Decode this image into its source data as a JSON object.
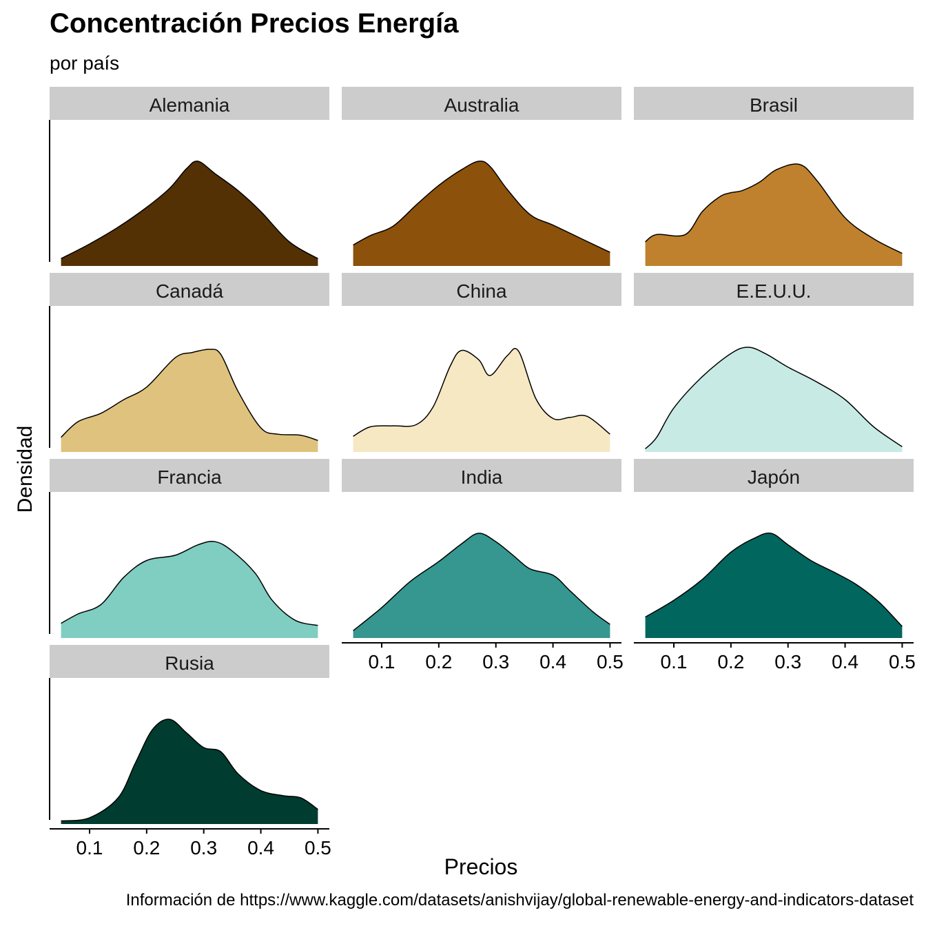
{
  "chart_data": {
    "type": "area",
    "subtype": "faceted density",
    "title": "Concentración Precios Energía",
    "subtitle": "por país",
    "xlabel": "Precios",
    "ylabel": "Densidad",
    "caption": "Información de https://www.kaggle.com/datasets/anishvijay/global-renewable-energy-and-indicators-dataset",
    "x_ticks": [
      "0.1",
      "0.2",
      "0.3",
      "0.4",
      "0.5"
    ],
    "x_tick_values": [
      0.1,
      0.2,
      0.3,
      0.4,
      0.5
    ],
    "xlim": [
      0.05,
      0.5
    ],
    "grid": false,
    "facet_columns": 3,
    "free_y_scale": true,
    "series": [
      {
        "name": "Alemania",
        "color": "#543005",
        "x": [
          0.05,
          0.1,
          0.15,
          0.2,
          0.24,
          0.27,
          0.29,
          0.32,
          0.36,
          0.4,
          0.45,
          0.5
        ],
        "density": [
          0.07,
          0.21,
          0.37,
          0.56,
          0.74,
          0.93,
          1.0,
          0.88,
          0.72,
          0.52,
          0.23,
          0.07
        ]
      },
      {
        "name": "Australia",
        "color": "#8C510A",
        "x": [
          0.05,
          0.08,
          0.12,
          0.16,
          0.2,
          0.24,
          0.27,
          0.29,
          0.32,
          0.36,
          0.4,
          0.45,
          0.5
        ],
        "density": [
          0.2,
          0.29,
          0.38,
          0.58,
          0.77,
          0.92,
          1.0,
          0.95,
          0.73,
          0.49,
          0.39,
          0.26,
          0.13
        ]
      },
      {
        "name": "Brasil",
        "color": "#BF812D",
        "x": [
          0.05,
          0.07,
          0.12,
          0.15,
          0.18,
          0.2,
          0.22,
          0.25,
          0.28,
          0.32,
          0.35,
          0.4,
          0.45,
          0.5
        ],
        "density": [
          0.23,
          0.3,
          0.3,
          0.52,
          0.66,
          0.7,
          0.72,
          0.8,
          0.92,
          0.97,
          0.82,
          0.46,
          0.26,
          0.12
        ]
      },
      {
        "name": "Canadá",
        "color": "#DFC27D",
        "x": [
          0.05,
          0.08,
          0.12,
          0.16,
          0.2,
          0.25,
          0.28,
          0.31,
          0.33,
          0.36,
          0.4,
          0.43,
          0.47,
          0.5
        ],
        "density": [
          0.14,
          0.29,
          0.37,
          0.5,
          0.62,
          0.9,
          0.95,
          0.98,
          0.93,
          0.58,
          0.23,
          0.17,
          0.16,
          0.11
        ]
      },
      {
        "name": "China",
        "color": "#F6E8C3",
        "x": [
          0.05,
          0.08,
          0.12,
          0.16,
          0.19,
          0.22,
          0.24,
          0.27,
          0.29,
          0.32,
          0.34,
          0.37,
          0.4,
          0.43,
          0.46,
          0.5
        ],
        "density": [
          0.15,
          0.24,
          0.25,
          0.26,
          0.43,
          0.82,
          0.97,
          0.88,
          0.73,
          0.92,
          0.96,
          0.51,
          0.32,
          0.33,
          0.34,
          0.17
        ]
      },
      {
        "name": "E.E.U.U.",
        "color": "#C7EAE5",
        "x": [
          0.05,
          0.07,
          0.1,
          0.15,
          0.2,
          0.23,
          0.26,
          0.3,
          0.35,
          0.4,
          0.45,
          0.5
        ],
        "density": [
          0.03,
          0.14,
          0.42,
          0.72,
          0.94,
          1.0,
          0.94,
          0.81,
          0.67,
          0.5,
          0.24,
          0.05
        ]
      },
      {
        "name": "Francia",
        "color": "#80CDC1",
        "x": [
          0.05,
          0.08,
          0.12,
          0.16,
          0.2,
          0.25,
          0.29,
          0.32,
          0.35,
          0.39,
          0.42,
          0.46,
          0.5
        ],
        "density": [
          0.14,
          0.23,
          0.32,
          0.58,
          0.74,
          0.79,
          0.89,
          0.92,
          0.83,
          0.62,
          0.36,
          0.17,
          0.12
        ]
      },
      {
        "name": "India",
        "color": "#35978F",
        "x": [
          0.05,
          0.1,
          0.15,
          0.2,
          0.24,
          0.27,
          0.3,
          0.33,
          0.36,
          0.4,
          0.43,
          0.47,
          0.5
        ],
        "density": [
          0.07,
          0.29,
          0.54,
          0.73,
          0.9,
          1.0,
          0.92,
          0.79,
          0.66,
          0.6,
          0.45,
          0.25,
          0.13
        ]
      },
      {
        "name": "Japón",
        "color": "#01665E",
        "x": [
          0.05,
          0.1,
          0.15,
          0.2,
          0.24,
          0.27,
          0.3,
          0.34,
          0.38,
          0.42,
          0.46,
          0.5
        ],
        "density": [
          0.2,
          0.36,
          0.56,
          0.82,
          0.95,
          1.0,
          0.89,
          0.74,
          0.63,
          0.51,
          0.34,
          0.11
        ]
      },
      {
        "name": "Rusia",
        "color": "#003C30",
        "x": [
          0.05,
          0.1,
          0.15,
          0.18,
          0.21,
          0.24,
          0.27,
          0.3,
          0.33,
          0.36,
          0.4,
          0.44,
          0.47,
          0.5
        ],
        "density": [
          0.03,
          0.06,
          0.25,
          0.58,
          0.9,
          1.0,
          0.87,
          0.73,
          0.69,
          0.48,
          0.32,
          0.27,
          0.25,
          0.14
        ]
      }
    ]
  }
}
